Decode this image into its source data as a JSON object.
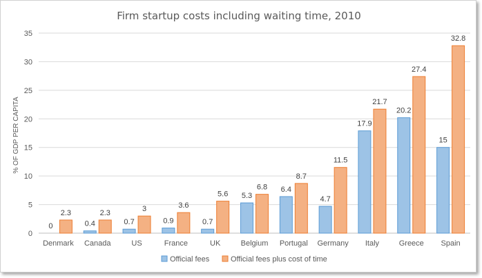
{
  "chart_data": {
    "type": "bar",
    "title": "Firm startup costs including waiting time, 2010",
    "ylabel": "% OF GDP PER CAPITA",
    "xlabel": "",
    "ylim": [
      0,
      35
    ],
    "yticks": [
      0,
      5,
      10,
      15,
      20,
      25,
      30,
      35
    ],
    "grid": true,
    "legend_position": "bottom",
    "categories": [
      "Denmark",
      "Canada",
      "US",
      "France",
      "UK",
      "Belgium",
      "Portugal",
      "Germany",
      "Italy",
      "Greece",
      "Spain"
    ],
    "series": [
      {
        "name": "Official fees",
        "values": [
          0,
          0.4,
          0.7,
          0.9,
          0.7,
          5.3,
          6.4,
          4.7,
          17.9,
          20.2,
          15
        ],
        "color": "#9dc3e6",
        "stroke": "#5b9bd5"
      },
      {
        "name": "Official fees plus cost of time",
        "values": [
          2.3,
          2.3,
          3,
          3.6,
          5.6,
          6.8,
          8.7,
          11.5,
          21.7,
          27.4,
          32.8
        ],
        "color": "#f4b183",
        "stroke": "#ed7d31"
      }
    ]
  }
}
